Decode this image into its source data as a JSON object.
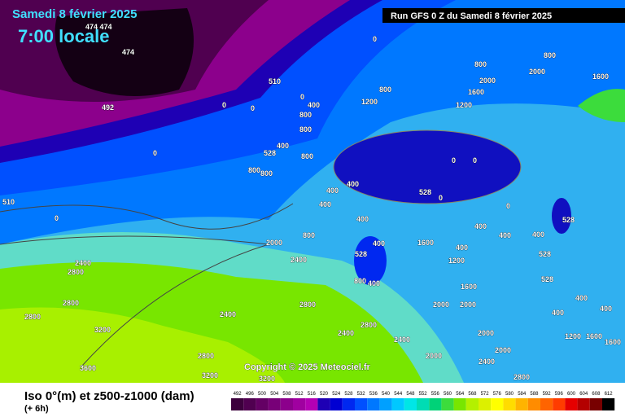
{
  "header": {
    "date": "Samedi 8 février 2025",
    "time": "7:00 locale",
    "run": "Run GFS 0 Z du Samedi 8 février 2025"
  },
  "copyright": "Copyright © 2025 Meteociel.fr",
  "footer": {
    "title": "Iso 0°(m) et z500-z1000 (dam)",
    "step": "(+ 6h)"
  },
  "legend": {
    "values": [
      492,
      496,
      500,
      504,
      508,
      512,
      516,
      520,
      524,
      528,
      532,
      536,
      540,
      544,
      548,
      552,
      556,
      560,
      564,
      568,
      572,
      576,
      580,
      584,
      588,
      592,
      596,
      600,
      604,
      608,
      612
    ],
    "colors": [
      "#3c003c",
      "#500050",
      "#640064",
      "#780078",
      "#8c008c",
      "#a000a0",
      "#b400b4",
      "#1e00b4",
      "#0000d2",
      "#0028f0",
      "#0050ff",
      "#0078ff",
      "#00a0ff",
      "#00c8ff",
      "#00e6e6",
      "#00dcb4",
      "#00d278",
      "#3cdc3c",
      "#78e600",
      "#b4f000",
      "#dcf000",
      "#ffff00",
      "#ffdc00",
      "#ffb400",
      "#ff8c00",
      "#ff6400",
      "#ff3c00",
      "#e60000",
      "#b40000",
      "#780000",
      "#000000"
    ]
  },
  "contour_labels": [
    "474 474",
    "474",
    "492",
    "510",
    "510",
    "0",
    "0",
    "0",
    "0",
    "400",
    "800",
    "800",
    "800",
    "1200",
    "2000",
    "2000",
    "1600",
    "1600",
    "1200",
    "800",
    "800",
    "0",
    "528",
    "400",
    "800",
    "800",
    "800",
    "0",
    "0",
    "400",
    "400",
    "400",
    "528",
    "0",
    "0",
    "528",
    "0",
    "400",
    "400",
    "400",
    "400",
    "800",
    "2000",
    "1600",
    "400",
    "2400",
    "2800",
    "2400",
    "528",
    "400",
    "1200",
    "800",
    "400",
    "528",
    "528",
    "1600",
    "2800",
    "2800",
    "2400",
    "2800",
    "2000",
    "2000",
    "400",
    "400",
    "400",
    "3200",
    "2400",
    "2800",
    "2400",
    "2000",
    "1200",
    "1600",
    "1600",
    "2800",
    "3600",
    "3200",
    "3200",
    "2000",
    "2400",
    "2800",
    "2000"
  ]
}
